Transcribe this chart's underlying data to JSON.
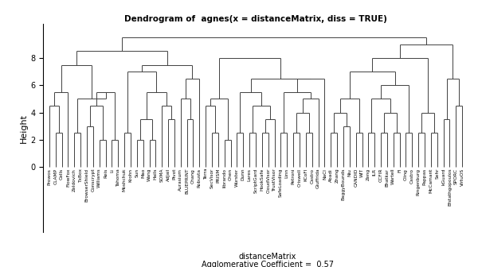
{
  "title": "Dendrogram of  agnes(x = distanceMatrix, diss = TRUE)",
  "xlabel_line1": "distanceMatrix",
  "xlabel_line2": "Agglomerative Coefficient =  0.57",
  "ylabel": "Height",
  "bg_color": "#ffffff",
  "line_color": "#404040",
  "lw": 0.7,
  "label_fontsize": 4.2,
  "labels": [
    "Prowos",
    "CLAMP",
    "Cells",
    "FlowFox",
    "Zeldovich",
    "TxBox",
    "BrowserShield",
    "Conscrypt",
    "Williams",
    "Reis",
    "Li",
    "Tahoma",
    "Moshchuk",
    "Krohn",
    "Sun",
    "Mao",
    "Wang",
    "Hails",
    "SOMA",
    "AdJail",
    "Pivot",
    "Aurasium",
    "BLUEPRINT",
    "Chang",
    "Robusta",
    "Terra",
    "SecVisor",
    "PRISM",
    "librando",
    "Chen",
    "Wurster",
    "Dunn",
    "Lares",
    "ScriptGard",
    "HookSafe",
    "CloudVisor",
    "TrustVisor",
    "SafeLoading",
    "Linn",
    "Petroni",
    "Criswell",
    "KCoFI",
    "Castro",
    "Giuffrida",
    "NaCl",
    "Abadi",
    "Zhang",
    "BaggyBounds",
    "Niu",
    "CANDID",
    "WIT",
    "Zeng",
    "ILR",
    "CCFIR",
    "Bhatkar",
    "Wartell",
    "FI",
    "Cling",
    "Castro",
    "Ringenburg",
    "Pappas",
    "McCamant",
    "Sehr",
    "kGuard",
    "Efstathgopoulos",
    "SPORC",
    "VirtuOS"
  ]
}
